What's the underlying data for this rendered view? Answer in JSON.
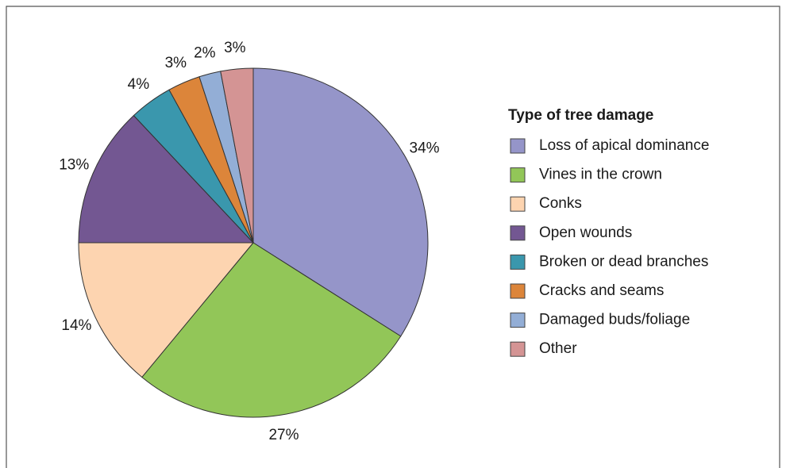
{
  "chart_data": {
    "type": "pie",
    "legend_title": "Type of tree damage",
    "categories": [
      "Loss of apical dominance",
      "Vines in the crown",
      "Conks",
      "Open wounds",
      "Broken or dead branches",
      "Cracks and seams",
      "Damaged buds/foliage",
      "Other"
    ],
    "values": [
      34,
      27,
      14,
      13,
      4,
      3,
      2,
      3
    ],
    "value_labels": [
      "34%",
      "27%",
      "14%",
      "13%",
      "4%",
      "3%",
      "2%",
      "3%"
    ],
    "colors": [
      "#9595c9",
      "#92c658",
      "#fdd4b0",
      "#735792",
      "#3a97ad",
      "#dc853a",
      "#93aed6",
      "#d49494"
    ],
    "legend": "right"
  }
}
